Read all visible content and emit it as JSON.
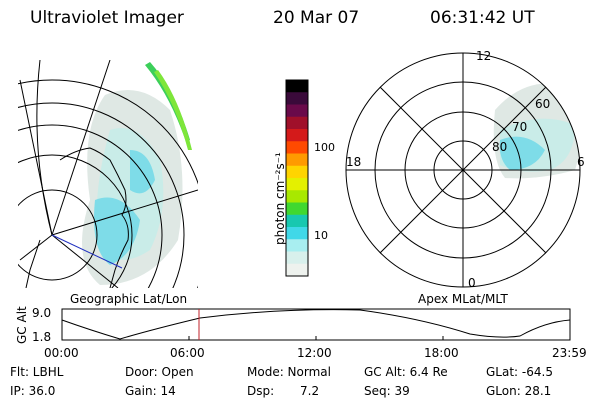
{
  "header": {
    "instrument": "Ultraviolet Imager",
    "date": "20 Mar 07",
    "time": "06:31:42 UT"
  },
  "colorbar": {
    "unit_label": "photon cm⁻²s⁻¹",
    "ticks": [
      "100",
      "10"
    ],
    "colors": [
      "#000000",
      "#3a0a3a",
      "#6a0a4a",
      "#a0102a",
      "#d41a1a",
      "#ff4a00",
      "#ff9a00",
      "#ffd400",
      "#e4f000",
      "#a8e800",
      "#40d830",
      "#18c8b0",
      "#40d8e8",
      "#a8eef0",
      "#d8f0ec",
      "#eef2ee"
    ]
  },
  "geo_panel": {
    "caption": "Geographic Lat/Lon"
  },
  "apex_panel": {
    "caption": "Apex MLat/MLT",
    "mlt_labels": {
      "top": "12",
      "left": "18",
      "right": "6",
      "bottom": "0"
    },
    "lat_labels": [
      "60",
      "70",
      "80"
    ]
  },
  "altitude_strip": {
    "axis_label": "GC Alt",
    "y_ticks": [
      "9.0",
      "1.8"
    ],
    "time_ticks": [
      "00:00",
      "06:00",
      "12:00",
      "18:00",
      "23:59"
    ],
    "marker_color": "#c0202a"
  },
  "info": {
    "filter": "Flt: LBHL",
    "ip": "IP: 36.0",
    "door": "Door: Open",
    "gain": "Gain: 14",
    "mode": "Mode: Normal",
    "dsp_label": "Dsp:",
    "dsp_value": "7.2",
    "gc_alt": "GC Alt: 6.4 Re",
    "seq": "Seq: 39",
    "glat": "GLat: -64.5",
    "glon": "GLon: 28.1"
  }
}
